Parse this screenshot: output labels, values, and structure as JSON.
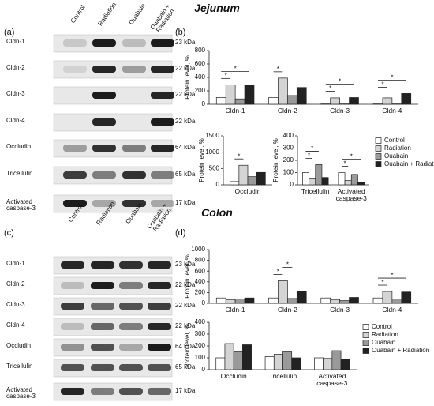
{
  "jejunum": {
    "title": "Jejunum",
    "blot_label": "(a)",
    "chart_label": "(b)",
    "lanes": [
      "Control",
      "Radiation",
      "Ouabain",
      "Ouabain + Radiation"
    ],
    "bands": [
      {
        "name": "Cldn-1",
        "size": "23 kDa"
      },
      {
        "name": "Cldn-2",
        "size": "22 kDa"
      },
      {
        "name": "Cldn-3",
        "size": "22 kDa"
      },
      {
        "name": "Cldn-4",
        "size": "22 kDa"
      },
      {
        "name": "Occludin",
        "size": "64 kDa"
      },
      {
        "name": "Tricellulin",
        "size": "65 kDa"
      },
      {
        "name": "Activated caspase-3",
        "size": "17 kDa"
      }
    ]
  },
  "colon": {
    "title": "Colon",
    "blot_label": "(c)",
    "chart_label": "(d)",
    "lanes": [
      "Control",
      "Radiation",
      "Ouabain",
      "Ouabain + Radiation"
    ],
    "bands": [
      {
        "name": "Cldn-1",
        "size": "23 kDa"
      },
      {
        "name": "Cldn-2",
        "size": "22 kDa"
      },
      {
        "name": "Cldn-3",
        "size": "22 kDa"
      },
      {
        "name": "Cldn-4",
        "size": "22 kDa"
      },
      {
        "name": "Occludin",
        "size": "64 kDa"
      },
      {
        "name": "Tricellulin",
        "size": "65 kDa"
      },
      {
        "name": "Activated caspase-3",
        "size": "17 kDa"
      }
    ]
  },
  "chart_data": [
    {
      "type": "bar",
      "ylabel": "Protein level, %",
      "categories": [
        "Cldn-1",
        "Cldn-2",
        "Cldn-3",
        "Cldn-4"
      ],
      "series": [
        {
          "color": "#ffffff",
          "values": [
            100,
            100,
            5,
            5
          ]
        },
        {
          "color": "#d4d4d4",
          "values": [
            290,
            390,
            95,
            95
          ]
        },
        {
          "color": "#9a9a9a",
          "values": [
            80,
            130,
            5,
            5
          ]
        },
        {
          "color": "#222222",
          "values": [
            290,
            250,
            100,
            160
          ]
        }
      ],
      "ylim": [
        0,
        800
      ],
      "yticks": [
        0,
        200,
        400,
        600,
        800
      ],
      "significance": [
        {
          "category": 0,
          "series": [
            0,
            1
          ],
          "label": "*"
        },
        {
          "category": 0,
          "series": [
            0,
            3
          ],
          "label": "*"
        },
        {
          "category": 1,
          "series": [
            0,
            1
          ],
          "label": "*"
        },
        {
          "category": 2,
          "series": [
            0,
            1
          ],
          "label": "*"
        },
        {
          "category": 2,
          "series": [
            0,
            3
          ],
          "label": "*"
        },
        {
          "category": 3,
          "series": [
            0,
            1
          ],
          "label": "*"
        },
        {
          "category": 3,
          "series": [
            0,
            3
          ],
          "label": "*"
        }
      ]
    },
    {
      "type": "bar",
      "ylabel": "Protein level, %",
      "categories": [
        "Occludin"
      ],
      "series": [
        {
          "color": "#ffffff",
          "values": [
            100
          ]
        },
        {
          "color": "#d4d4d4",
          "values": [
            600
          ]
        },
        {
          "color": "#9a9a9a",
          "values": [
            250
          ]
        },
        {
          "color": "#222222",
          "values": [
            380
          ]
        }
      ],
      "ylim": [
        0,
        1500
      ],
      "yticks": [
        0,
        500,
        1000,
        1500
      ],
      "significance": [
        {
          "category": 0,
          "series": [
            0,
            1
          ],
          "label": "*"
        }
      ]
    },
    {
      "type": "bar",
      "ylabel": "Protein level, %",
      "categories": [
        "Tricellulin",
        "Activated caspase-3"
      ],
      "series": [
        {
          "name": "Control",
          "color": "#ffffff",
          "values": [
            100,
            100
          ]
        },
        {
          "name": "Radiation",
          "color": "#d4d4d4",
          "values": [
            55,
            35
          ]
        },
        {
          "name": "Ouabain",
          "color": "#9a9a9a",
          "values": [
            165,
            85
          ]
        },
        {
          "name": "Ouabain + Radiation",
          "color": "#222222",
          "values": [
            60,
            20
          ]
        }
      ],
      "ylim": [
        0,
        400
      ],
      "yticks": [
        0,
        100,
        200,
        300,
        400
      ],
      "legend": "right",
      "significance": [
        {
          "category": 0,
          "series": [
            0,
            1
          ],
          "label": "*"
        },
        {
          "category": 0,
          "series": [
            0,
            2
          ],
          "label": "*"
        },
        {
          "category": 1,
          "series": [
            0,
            1
          ],
          "label": "*"
        },
        {
          "category": 1,
          "series": [
            0,
            3
          ],
          "label": "*"
        }
      ]
    },
    {
      "type": "bar",
      "ylabel": "Protein level, %",
      "categories": [
        "Cldn-1",
        "Cldn-2",
        "Cldn-3",
        "Cldn-4"
      ],
      "series": [
        {
          "color": "#ffffff",
          "values": [
            100,
            100,
            100,
            100
          ]
        },
        {
          "color": "#d4d4d4",
          "values": [
            70,
            420,
            70,
            220
          ]
        },
        {
          "color": "#9a9a9a",
          "values": [
            80,
            90,
            50,
            80
          ]
        },
        {
          "color": "#222222",
          "values": [
            100,
            220,
            110,
            210
          ]
        }
      ],
      "ylim": [
        0,
        1000
      ],
      "yticks": [
        0,
        200,
        400,
        600,
        800,
        1000
      ],
      "significance": [
        {
          "category": 1,
          "series": [
            0,
            1
          ],
          "label": "*"
        },
        {
          "category": 1,
          "series": [
            1,
            2
          ],
          "label": "*"
        },
        {
          "category": 3,
          "series": [
            0,
            1
          ],
          "label": "*"
        },
        {
          "category": 3,
          "series": [
            0,
            3
          ],
          "label": "*"
        }
      ]
    },
    {
      "type": "bar",
      "ylabel": "Protein level, %",
      "categories": [
        "Occludin",
        "Tricellulin",
        "Activated caspase-3"
      ],
      "series": [
        {
          "name": "Control",
          "color": "#ffffff",
          "values": [
            100,
            110,
            100
          ]
        },
        {
          "name": "Radiation",
          "color": "#d4d4d4",
          "values": [
            220,
            130,
            95
          ]
        },
        {
          "name": "Ouabain",
          "color": "#9a9a9a",
          "values": [
            150,
            150,
            160
          ]
        },
        {
          "name": "Ouabain + Radiation",
          "color": "#222222",
          "values": [
            210,
            100,
            90
          ]
        }
      ],
      "ylim": [
        0,
        400
      ],
      "yticks": [
        0,
        100,
        200,
        300,
        400
      ],
      "legend": "right",
      "significance": []
    }
  ]
}
